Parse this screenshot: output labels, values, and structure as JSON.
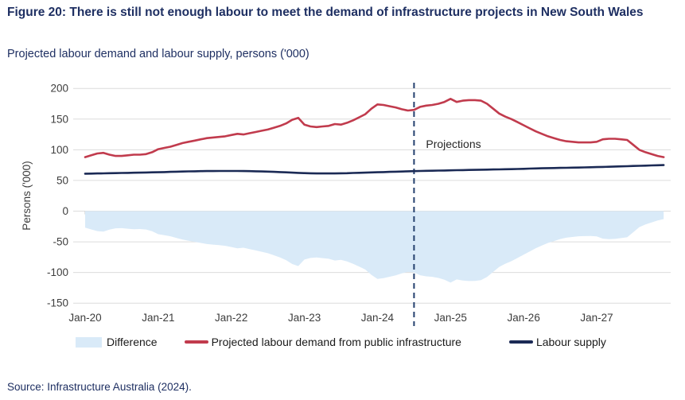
{
  "figure": {
    "title": "Figure 20: There is still not enough labour to meet the demand of infrastructure projects in New South Wales",
    "subtitle": "Projected labour demand and labour supply, persons ('000)",
    "source": "Source: Infrastructure Australia (2024)."
  },
  "colors": {
    "title_navy": "#1e2f62",
    "grid": "#dcdcdc",
    "axis_tick_text": "#3d3d3d",
    "area_fill": "#d9eaf8",
    "demand_red": "#c13b4d",
    "supply_navy": "#1b2a55",
    "dashed_divider": "#24406e"
  },
  "chart_data": {
    "type": "line",
    "title": "Projected labour demand and labour supply, persons ('000)",
    "xlabel": "",
    "ylabel": "Persons ('000)",
    "ylim": [
      -150,
      200
    ],
    "yticks": [
      200,
      150,
      100,
      50,
      0,
      -50,
      -100,
      -150
    ],
    "xticks": [
      "Jan-20",
      "Jan-21",
      "Jan-22",
      "Jan-23",
      "Jan-24",
      "Jan-25",
      "Jan-26",
      "Jan-27"
    ],
    "x_start": "Jan-2020",
    "x_end": "Dec-2027",
    "frequency": "monthly",
    "grid": "horizontal",
    "legend_position": "bottom",
    "projection_divider": {
      "label": "Projections",
      "month_index": 54,
      "month": "Jul-24",
      "style": "dashed-vertical"
    },
    "series": [
      {
        "name": "Difference",
        "type": "area",
        "color": "#d9eaf8",
        "note": "equals Labour supply minus labour demand",
        "values": [
          -27.0,
          -29.8,
          -32.6,
          -33.4,
          -30.2,
          -28.0,
          -27.8,
          -28.6,
          -29.4,
          -29.2,
          -30.0,
          -32.8,
          -37.6,
          -39.3,
          -41.0,
          -43.7,
          -46.4,
          -48.2,
          -50.0,
          -51.8,
          -53.7,
          -54.6,
          -55.5,
          -56.5,
          -58.5,
          -60.5,
          -59.6,
          -61.8,
          -64.0,
          -66.3,
          -68.6,
          -72.0,
          -75.4,
          -79.8,
          -86.2,
          -89.6,
          -79.0,
          -76.3,
          -75.5,
          -76.6,
          -77.6,
          -80.5,
          -79.3,
          -82.1,
          -85.8,
          -90.5,
          -95.2,
          -103.9,
          -110.6,
          -109.3,
          -107.0,
          -104.7,
          -101.4,
          -99.1,
          -99.8,
          -104.5,
          -106.3,
          -107.1,
          -108.9,
          -111.7,
          -116.5,
          -111.3,
          -113.1,
          -113.9,
          -113.7,
          -112.5,
          -107.3,
          -99.1,
          -90.9,
          -85.7,
          -81.5,
          -76.3,
          -71.0,
          -65.7,
          -60.4,
          -56.1,
          -51.9,
          -48.7,
          -45.5,
          -43.3,
          -42.1,
          -40.9,
          -40.7,
          -40.5,
          -41.2,
          -44.9,
          -45.6,
          -45.3,
          -44.0,
          -42.7,
          -34.4,
          -26.1,
          -21.8,
          -18.5,
          -15.2,
          -13.0
        ]
      },
      {
        "name": "Projected labour demand from public infrastructure",
        "type": "line",
        "color": "#c13b4d",
        "values": [
          88,
          91,
          94,
          95,
          92,
          90,
          90,
          91,
          92,
          92,
          93,
          96,
          101,
          103,
          105,
          108,
          111,
          113,
          115,
          117,
          119,
          120,
          121,
          122,
          124,
          126,
          125,
          127,
          129,
          131,
          133,
          136,
          139,
          143,
          149,
          152,
          141,
          138,
          137,
          138,
          139,
          142,
          141,
          144,
          148,
          153,
          158,
          167,
          174,
          173,
          171,
          169,
          166,
          164,
          165,
          170,
          172,
          173,
          175,
          178,
          183,
          178,
          180,
          181,
          181,
          180,
          175,
          167,
          159,
          154,
          150,
          145,
          140,
          135,
          130,
          126,
          122,
          119,
          116,
          114,
          113,
          112,
          112,
          112,
          113,
          117,
          118,
          118,
          117,
          116,
          108,
          100,
          96,
          93,
          90,
          88
        ]
      },
      {
        "name": "Labour supply",
        "type": "line",
        "color": "#1b2a55",
        "values": [
          61.0,
          61.2,
          61.4,
          61.6,
          61.8,
          62.0,
          62.2,
          62.4,
          62.6,
          62.8,
          63.0,
          63.2,
          63.4,
          63.7,
          64.0,
          64.3,
          64.6,
          64.8,
          65.0,
          65.2,
          65.3,
          65.4,
          65.5,
          65.5,
          65.5,
          65.5,
          65.4,
          65.2,
          65.0,
          64.7,
          64.4,
          64.0,
          63.6,
          63.2,
          62.8,
          62.4,
          62.0,
          61.7,
          61.5,
          61.4,
          61.4,
          61.5,
          61.7,
          61.9,
          62.2,
          62.5,
          62.8,
          63.1,
          63.4,
          63.7,
          64.0,
          64.3,
          64.6,
          64.9,
          65.2,
          65.5,
          65.7,
          65.9,
          66.1,
          66.3,
          66.5,
          66.7,
          66.9,
          67.1,
          67.3,
          67.5,
          67.7,
          67.9,
          68.1,
          68.3,
          68.5,
          68.7,
          69.0,
          69.3,
          69.6,
          69.9,
          70.1,
          70.3,
          70.5,
          70.7,
          70.9,
          71.1,
          71.3,
          71.5,
          71.8,
          72.1,
          72.4,
          72.7,
          73.0,
          73.3,
          73.6,
          73.9,
          74.2,
          74.5,
          74.8,
          75.0
        ]
      }
    ]
  }
}
